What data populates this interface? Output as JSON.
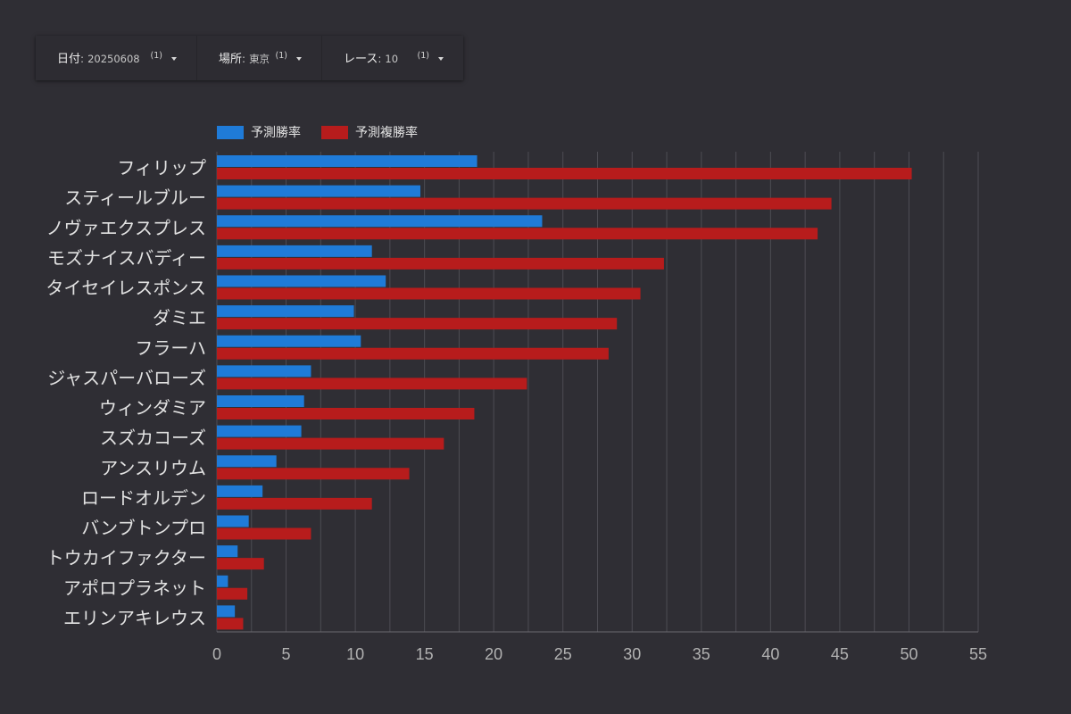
{
  "filters": [
    {
      "label": "日付",
      "value": "20250608",
      "count": "(1)"
    },
    {
      "label": "場所",
      "value": "東京",
      "count": "(1)"
    },
    {
      "label": "レース",
      "value": "10",
      "count": "(1)"
    }
  ],
  "filter_separator": ":",
  "icons": {
    "filter_dropdown": "dropdown-arrow-icon"
  },
  "colors": {
    "background": "#2f2e34"
  },
  "chart_data": {
    "type": "bar",
    "orientation": "horizontal",
    "categories": [
      "フィリップ",
      "スティールブルー",
      "ノヴァエクスプレス",
      "モズナイスバディー",
      "タイセイレスポンス",
      "ダミエ",
      "フラーハ",
      "ジャスパーバローズ",
      "ウィンダミア",
      "スズカコーズ",
      "アンスリウム",
      "ロードオルデン",
      "バンブトンプロ",
      "トウカイファクター",
      "アポロプラネット",
      "エリンアキレウス"
    ],
    "series": [
      {
        "name": "予測勝率",
        "color": "#1f7bd8",
        "values": [
          18.8,
          14.7,
          23.5,
          11.2,
          12.2,
          9.9,
          10.4,
          6.8,
          6.3,
          6.1,
          4.3,
          3.3,
          2.3,
          1.5,
          0.8,
          1.3
        ]
      },
      {
        "name": "予測複勝率",
        "color": "#b71c1c",
        "values": [
          50.2,
          44.4,
          43.4,
          32.3,
          30.6,
          28.9,
          28.3,
          22.4,
          18.6,
          16.4,
          13.9,
          11.2,
          6.8,
          3.4,
          2.2,
          1.9
        ]
      }
    ],
    "x_ticks": [
      "0",
      "5",
      "10",
      "15",
      "20",
      "25",
      "30",
      "35",
      "40",
      "45",
      "50",
      "55"
    ],
    "xlim": [
      0,
      55
    ],
    "grid": true,
    "legend": "top-left"
  }
}
